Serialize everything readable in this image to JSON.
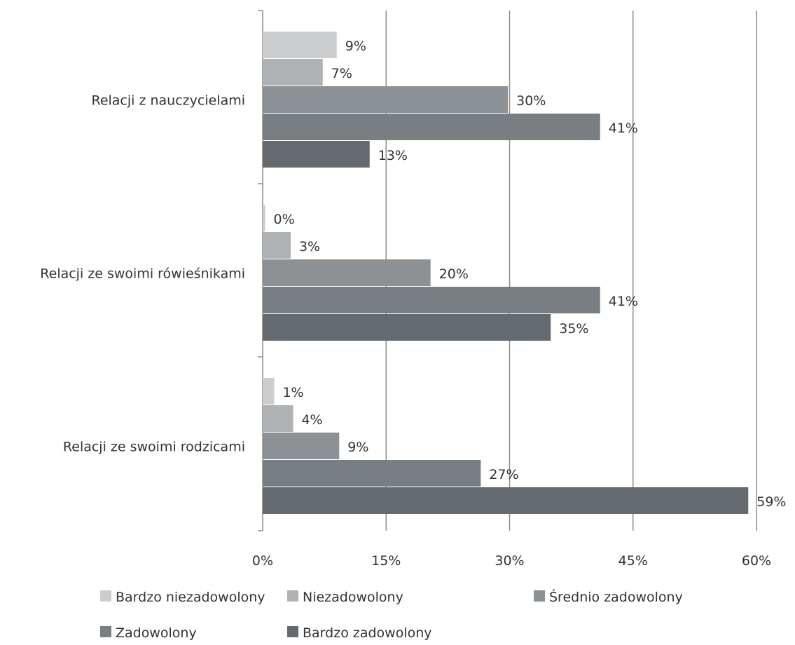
{
  "chart_data": {
    "type": "bar",
    "orientation": "horizontal",
    "categories": [
      "Relacji z nauczycielami",
      "Relacji ze swoimi rówieśnikami",
      "Relacji ze swoimi rodzicami"
    ],
    "series": [
      {
        "name": "Bardzo  niezadowolony",
        "color": "#cbcdce",
        "values": [
          9,
          0.3,
          1.4
        ],
        "labels": [
          "9%",
          "0%",
          "1%"
        ]
      },
      {
        "name": "Niezadowolony",
        "color": "#afb2b4",
        "values": [
          7.3,
          3.4,
          3.7
        ],
        "labels": [
          "7%",
          "3%",
          "4%"
        ]
      },
      {
        "name": "Średnio zadowolony",
        "color": "#8c9195",
        "values": [
          29.8,
          20.4,
          9.3
        ],
        "labels": [
          "30%",
          "20%",
          "9%"
        ]
      },
      {
        "name": "Zadowolony",
        "color": "#797e83",
        "values": [
          41,
          41,
          26.5
        ],
        "labels": [
          "41%",
          "41%",
          "27%"
        ]
      },
      {
        "name": "Bardzo zadowolony",
        "color": "#646a6e",
        "values": [
          13,
          35,
          59
        ],
        "labels": [
          "13%",
          "35%",
          "59%"
        ]
      }
    ],
    "xlim": [
      0,
      60
    ],
    "xticks": [
      0,
      15,
      30,
      45,
      60
    ],
    "xtick_labels": [
      "0%",
      "15%",
      "30%",
      "45%",
      "60%"
    ],
    "grid": "vertical",
    "legend_position": "bottom"
  }
}
